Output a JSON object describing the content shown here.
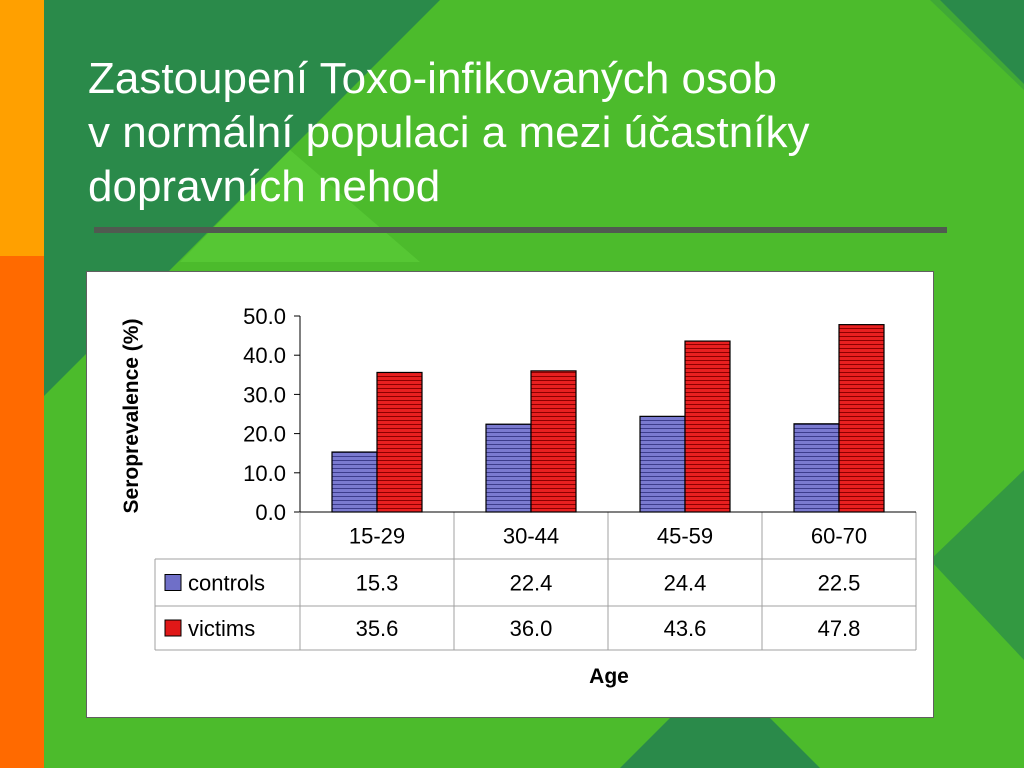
{
  "slide": {
    "title_lines": [
      "Zastoupení Toxo-infikovaných osob",
      "v normální populaci a mezi účastníky",
      "dopravních nehod"
    ]
  },
  "colors": {
    "background_green": "#4cbb2c",
    "dark_green": "#2a8a4a",
    "orange_light": "#ffa000",
    "orange_dark": "#ff6a00",
    "rule": "#505a50",
    "controls_bar": "#6f6fc8",
    "victims_bar": "#e01818"
  },
  "chart_data": {
    "type": "bar",
    "categories": [
      "15-29",
      "30-44",
      "45-59",
      "60-70"
    ],
    "series": [
      {
        "name": "controls",
        "values": [
          15.3,
          22.4,
          24.4,
          22.5
        ]
      },
      {
        "name": "victims",
        "values": [
          35.6,
          36.0,
          43.6,
          47.8
        ]
      }
    ],
    "value_labels": {
      "controls": [
        "15.3",
        "22.4",
        "24.4",
        "22.5"
      ],
      "victims": [
        "35.6",
        "36.0",
        "43.6",
        "47.8"
      ]
    },
    "xlabel": "Age",
    "ylabel": "Seroprevalence (%)",
    "ylim": [
      0,
      50
    ],
    "yticks": [
      "0.0",
      "10.0",
      "20.0",
      "30.0",
      "40.0",
      "50.0"
    ],
    "grid": false,
    "legend": "data-table-left",
    "data_table": true
  }
}
